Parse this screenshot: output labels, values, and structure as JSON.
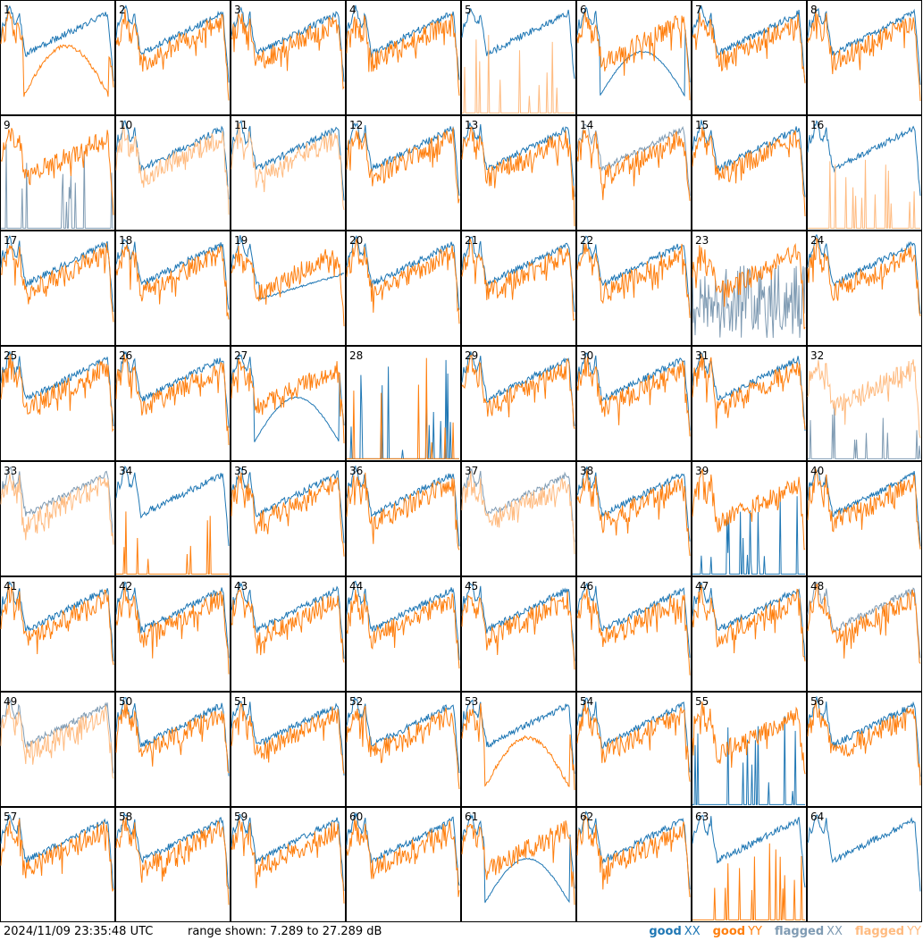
{
  "footer": {
    "timestamp": "2024/11/09 23:35:48 UTC",
    "range_label": "range shown:",
    "range_text": "7.289 to 27.289 dB"
  },
  "legend": [
    {
      "label": "good",
      "symbol": "XX",
      "color": "#1f77b4"
    },
    {
      "label": "good",
      "symbol": "YY",
      "color": "#ff7f0e"
    },
    {
      "label": "flagged",
      "symbol": "XX",
      "color": "#7f9bb3"
    },
    {
      "label": "flagged",
      "symbol": "YY",
      "color": "#ffbb80"
    }
  ],
  "chart_data": {
    "type": "line",
    "grid": "8x8 small multiples",
    "y_range_db": [
      7.289,
      27.289
    ],
    "colors": {
      "good_xx": "#1f77b4",
      "good_yy": "#ff7f0e",
      "flagged_xx": "#7f9bb3",
      "flagged_yy": "#ffbb80"
    },
    "panels": [
      {
        "id": "1",
        "xx": "good",
        "yy": "good",
        "style": "yydip"
      },
      {
        "id": "2",
        "xx": "good",
        "yy": "good",
        "style": "std"
      },
      {
        "id": "3",
        "xx": "good",
        "yy": "good",
        "style": "std"
      },
      {
        "id": "4",
        "xx": "good",
        "yy": "good",
        "style": "std"
      },
      {
        "id": "5",
        "xx": "good",
        "yy": "flagged",
        "style": "yyspike"
      },
      {
        "id": "6",
        "xx": "good",
        "yy": "good",
        "style": "xxdip"
      },
      {
        "id": "7",
        "xx": "good",
        "yy": "good",
        "style": "std"
      },
      {
        "id": "8",
        "xx": "good",
        "yy": "good",
        "style": "std"
      },
      {
        "id": "9",
        "xx": "flagged",
        "yy": "good",
        "style": "xxspike"
      },
      {
        "id": "10",
        "xx": "good",
        "yy": "flagged",
        "style": "std"
      },
      {
        "id": "11",
        "xx": "good",
        "yy": "flagged",
        "style": "std"
      },
      {
        "id": "12",
        "xx": "good",
        "yy": "good",
        "style": "std"
      },
      {
        "id": "13",
        "xx": "good",
        "yy": "good",
        "style": "std"
      },
      {
        "id": "14",
        "xx": "flagged",
        "yy": "good",
        "style": "std"
      },
      {
        "id": "15",
        "xx": "good",
        "yy": "good",
        "style": "std"
      },
      {
        "id": "16",
        "xx": "good",
        "yy": "flagged",
        "style": "yyspike"
      },
      {
        "id": "17",
        "xx": "good",
        "yy": "good",
        "style": "std"
      },
      {
        "id": "18",
        "xx": "good",
        "yy": "good",
        "style": "std"
      },
      {
        "id": "19",
        "xx": "good",
        "yy": "good",
        "style": "xxlow"
      },
      {
        "id": "20",
        "xx": "good",
        "yy": "good",
        "style": "std"
      },
      {
        "id": "21",
        "xx": "good",
        "yy": "good",
        "style": "std"
      },
      {
        "id": "22",
        "xx": "good",
        "yy": "good",
        "style": "std"
      },
      {
        "id": "23",
        "xx": "flagged",
        "yy": "good",
        "style": "xxnoise"
      },
      {
        "id": "24",
        "xx": "good",
        "yy": "good",
        "style": "std"
      },
      {
        "id": "25",
        "xx": "good",
        "yy": "good",
        "style": "std"
      },
      {
        "id": "26",
        "xx": "good",
        "yy": "good",
        "style": "std"
      },
      {
        "id": "27",
        "xx": "good",
        "yy": "good",
        "style": "xxdip"
      },
      {
        "id": "28",
        "xx": "good",
        "yy": "good",
        "style": "bothspike"
      },
      {
        "id": "29",
        "xx": "good",
        "yy": "good",
        "style": "std"
      },
      {
        "id": "30",
        "xx": "good",
        "yy": "good",
        "style": "std"
      },
      {
        "id": "31",
        "xx": "good",
        "yy": "good",
        "style": "std"
      },
      {
        "id": "32",
        "xx": "flagged",
        "yy": "flagged",
        "style": "xxspike"
      },
      {
        "id": "33",
        "xx": "flagged",
        "yy": "flagged",
        "style": "std"
      },
      {
        "id": "34",
        "xx": "good",
        "yy": "good",
        "style": "yyspike"
      },
      {
        "id": "35",
        "xx": "good",
        "yy": "good",
        "style": "std"
      },
      {
        "id": "36",
        "xx": "good",
        "yy": "good",
        "style": "std"
      },
      {
        "id": "37",
        "xx": "flagged",
        "yy": "flagged",
        "style": "std"
      },
      {
        "id": "38",
        "xx": "good",
        "yy": "good",
        "style": "std"
      },
      {
        "id": "39",
        "xx": "good",
        "yy": "good",
        "style": "xxspike"
      },
      {
        "id": "40",
        "xx": "good",
        "yy": "good",
        "style": "std"
      },
      {
        "id": "41",
        "xx": "good",
        "yy": "good",
        "style": "std"
      },
      {
        "id": "42",
        "xx": "good",
        "yy": "good",
        "style": "std"
      },
      {
        "id": "43",
        "xx": "good",
        "yy": "good",
        "style": "std"
      },
      {
        "id": "44",
        "xx": "good",
        "yy": "good",
        "style": "std"
      },
      {
        "id": "45",
        "xx": "good",
        "yy": "good",
        "style": "std"
      },
      {
        "id": "46",
        "xx": "good",
        "yy": "good",
        "style": "std"
      },
      {
        "id": "47",
        "xx": "good",
        "yy": "good",
        "style": "std"
      },
      {
        "id": "48",
        "xx": "flagged",
        "yy": "good",
        "style": "std"
      },
      {
        "id": "49",
        "xx": "flagged",
        "yy": "flagged",
        "style": "std"
      },
      {
        "id": "50",
        "xx": "good",
        "yy": "good",
        "style": "std"
      },
      {
        "id": "51",
        "xx": "good",
        "yy": "good",
        "style": "std"
      },
      {
        "id": "52",
        "xx": "good",
        "yy": "good",
        "style": "std"
      },
      {
        "id": "53",
        "xx": "good",
        "yy": "good",
        "style": "yydip"
      },
      {
        "id": "54",
        "xx": "good",
        "yy": "good",
        "style": "std"
      },
      {
        "id": "55",
        "xx": "good",
        "yy": "good",
        "style": "xxspike"
      },
      {
        "id": "56",
        "xx": "good",
        "yy": "good",
        "style": "std"
      },
      {
        "id": "57",
        "xx": "good",
        "yy": "good",
        "style": "std"
      },
      {
        "id": "58",
        "xx": "good",
        "yy": "good",
        "style": "std"
      },
      {
        "id": "59",
        "xx": "good",
        "yy": "good",
        "style": "std"
      },
      {
        "id": "60",
        "xx": "good",
        "yy": "good",
        "style": "std"
      },
      {
        "id": "61",
        "xx": "good",
        "yy": "good",
        "style": "xxdip"
      },
      {
        "id": "62",
        "xx": "good",
        "yy": "good",
        "style": "std"
      },
      {
        "id": "63",
        "xx": "good",
        "yy": "good",
        "style": "yyspike"
      },
      {
        "id": "64",
        "xx": "good",
        "yy": "good",
        "style": "xxonly"
      }
    ]
  }
}
